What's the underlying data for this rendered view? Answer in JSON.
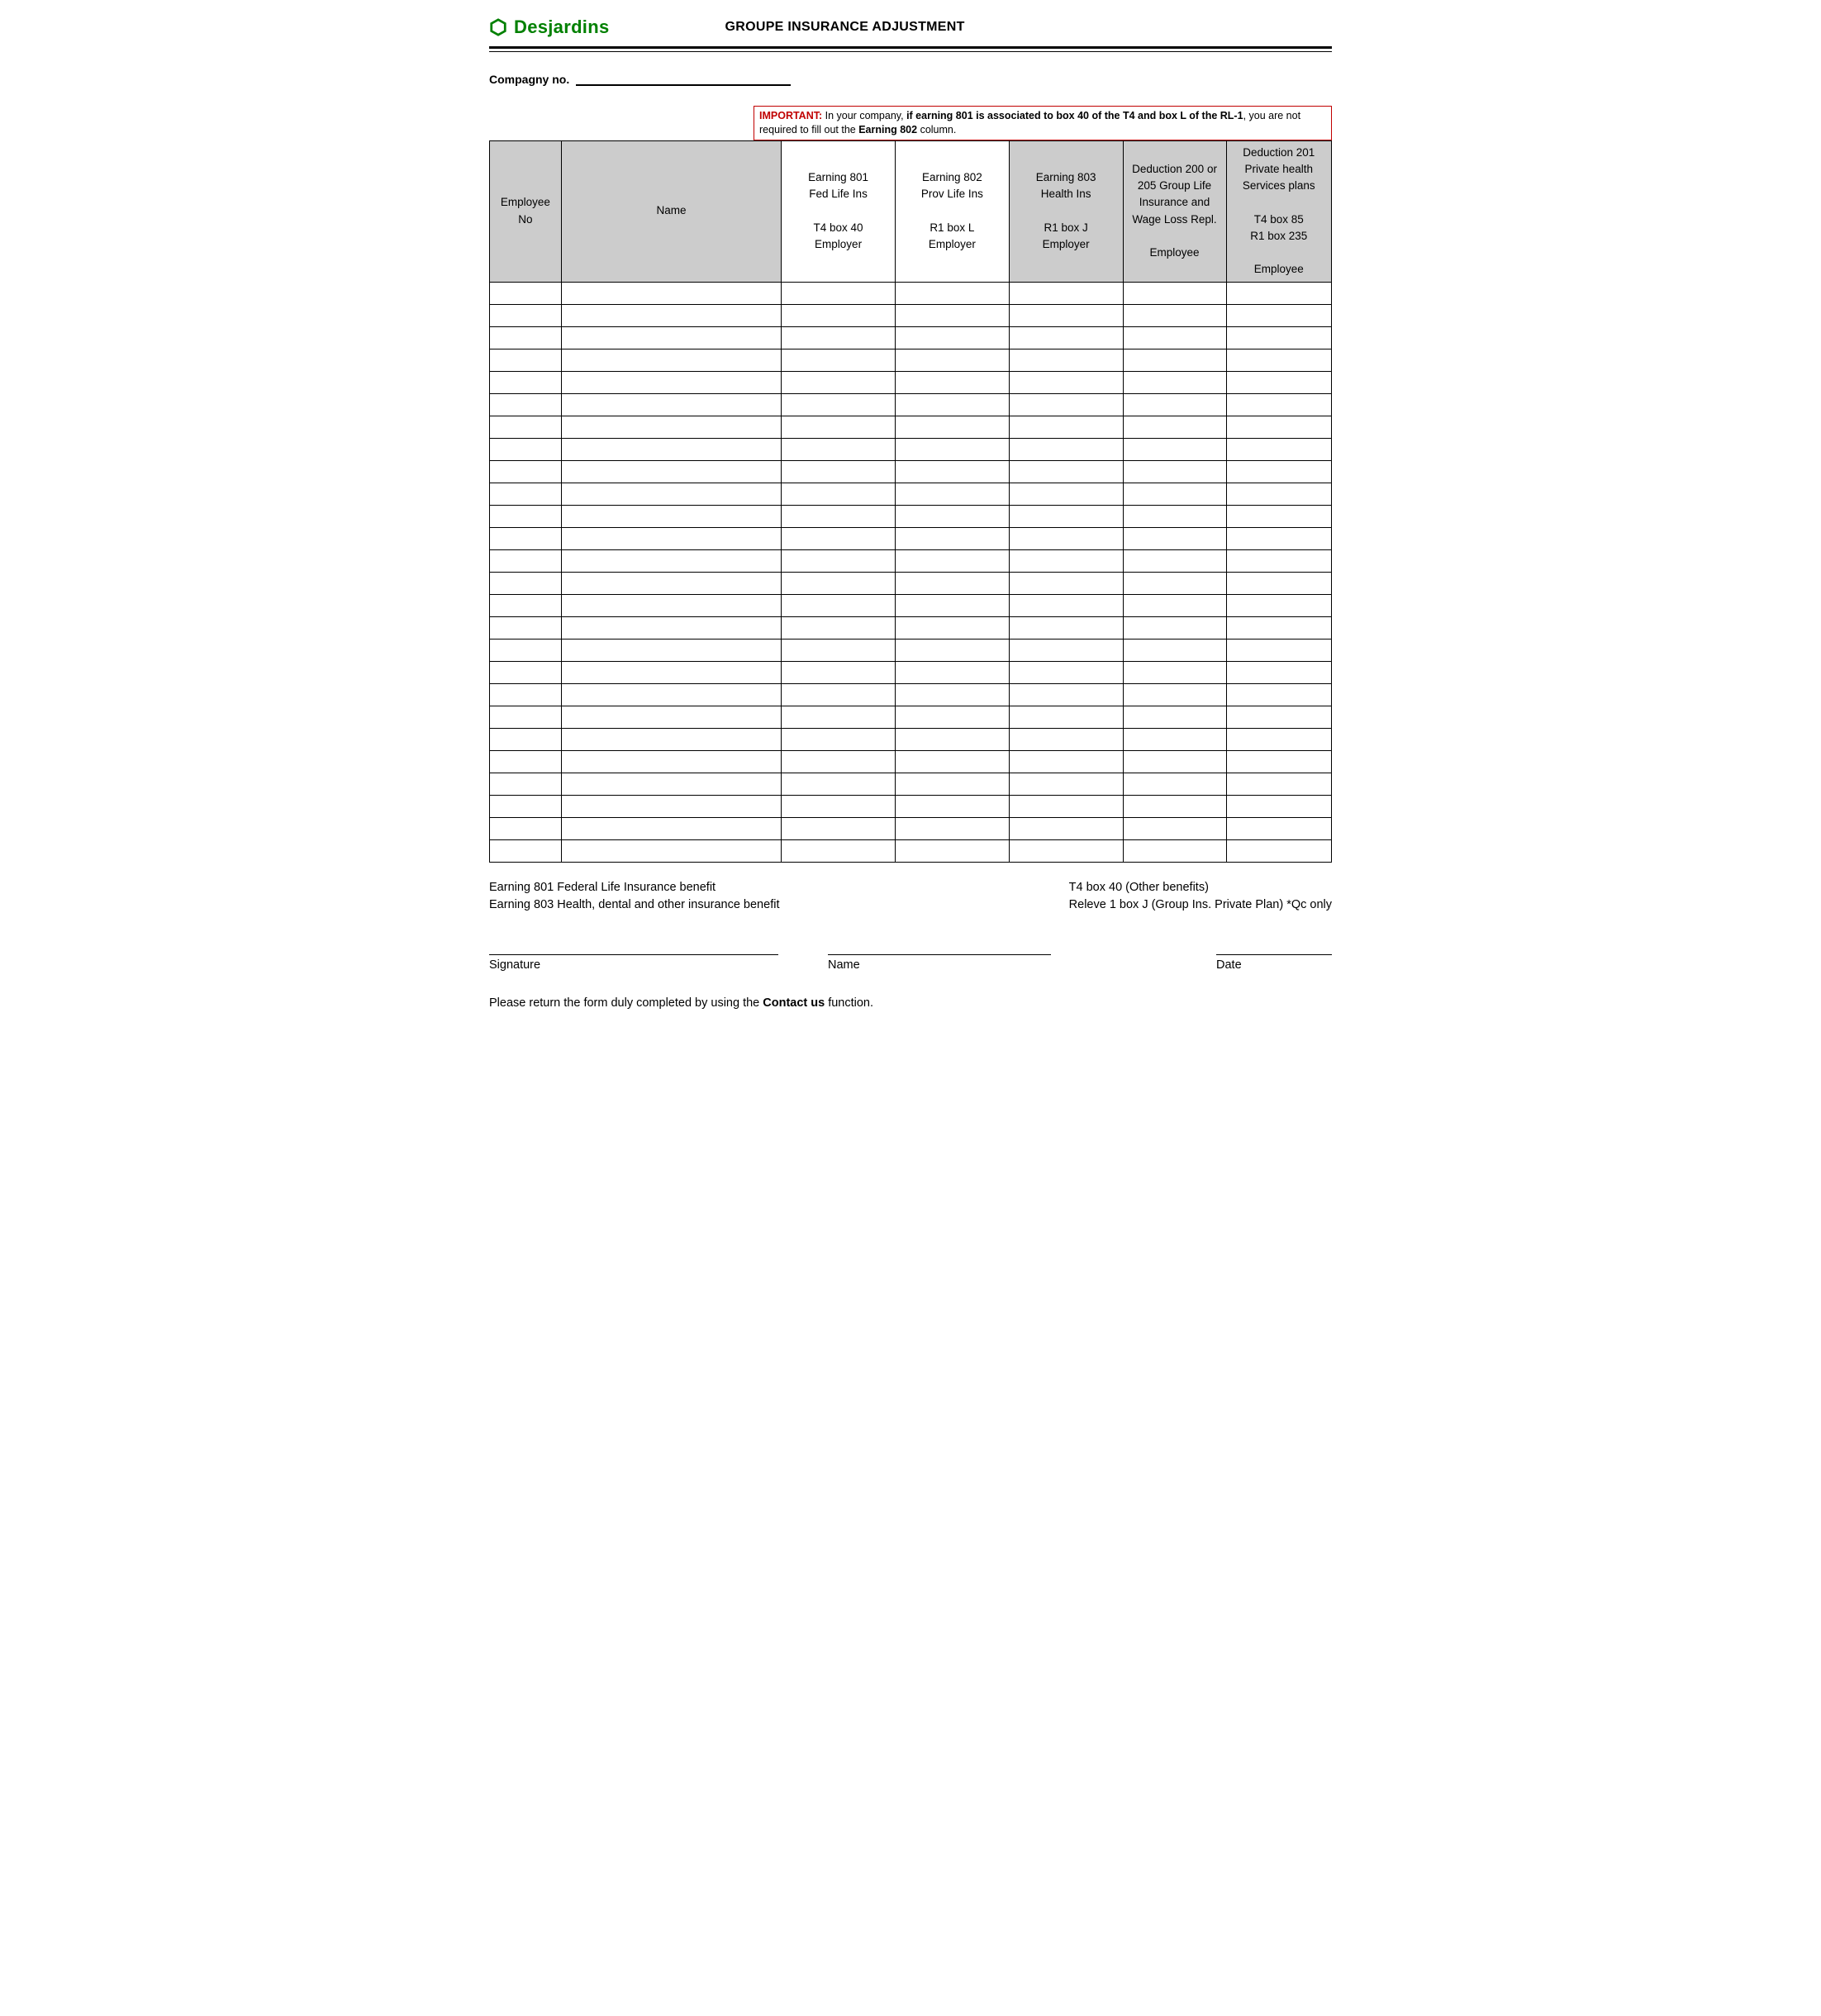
{
  "brand": {
    "name": "Desjardins",
    "logo_color": "#008000"
  },
  "title": "GROUPE INSURANCE ADJUSTMENT",
  "company_label": "Compagny no.",
  "important": {
    "label": "IMPORTANT:",
    "t1": " In your company, ",
    "bold1": "if earning 801 is associated to box 40 of the T4 and box L of the RL-1",
    "t2": ", you are not required to fill out the ",
    "bold2": "Earning 802",
    "t3": " column."
  },
  "columns": {
    "emp_no": "Employee\nNo",
    "name": "Name",
    "e801": "Earning 801\nFed Life Ins\n\nT4 box 40\nEmployer",
    "e802": "Earning 802\nProv Life Ins\n\nR1 box L\nEmployer",
    "e803": "Earning 803\nHealth Ins\n\nR1 box J\nEmployer",
    "d200": "Deduction 200 or 205 Group Life Insurance and Wage Loss Repl.\n\nEmployee",
    "d201": "Deduction 201 Private health Services plans\n\nT4 box 85\nR1 box 235\n\nEmployee"
  },
  "row_count": 26,
  "legend": {
    "left": "Earning 801 Federal Life Insurance benefit\nEarning 803 Health, dental and other insurance benefit",
    "right": "T4 box 40 (Other benefits)\nReleve 1 box J (Group Ins. Private Plan)  *Qc only"
  },
  "sign": {
    "signature": "Signature",
    "name": "Name",
    "date": "Date"
  },
  "return": {
    "t1": "Please return the form duly completed by using the ",
    "bold": "Contact us",
    "t2": " function."
  }
}
